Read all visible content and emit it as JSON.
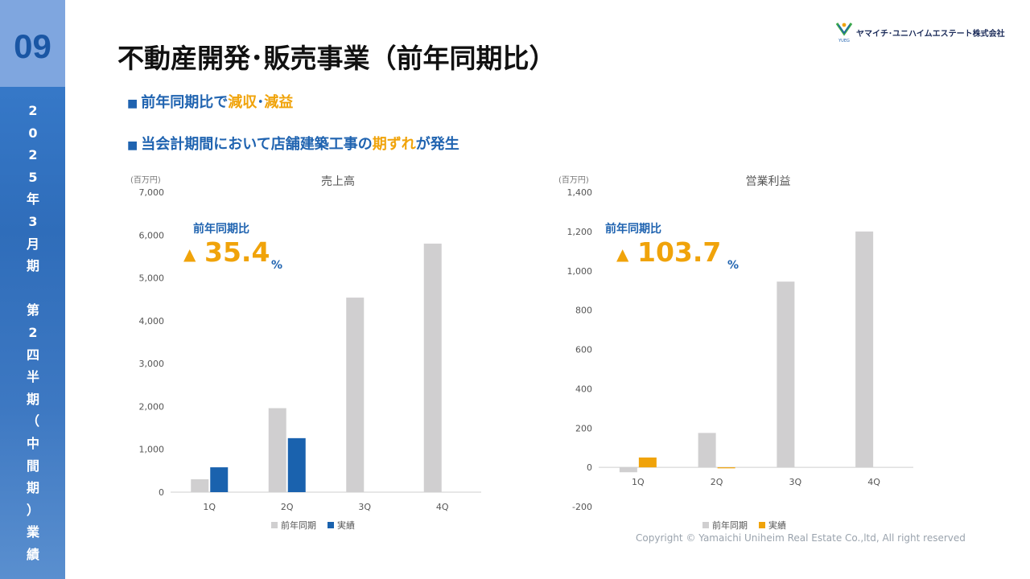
{
  "page_number": "09",
  "side_label": [
    "2",
    "0",
    "2",
    "5",
    "年",
    "3",
    "月",
    "期",
    "",
    "第",
    "2",
    "四",
    "半",
    "期",
    "（",
    "中",
    "間",
    "期",
    "）",
    "業",
    "績"
  ],
  "title": "不動産開発･販売事業（前年同期比）",
  "company": "ヤマイチ･ユニハイムエステート株式会社",
  "logo_mark": "YUEG",
  "bullets": [
    {
      "marker": "■",
      "parts": [
        {
          "text": "前年同期比で",
          "hl": false
        },
        {
          "text": "減収",
          "hl": true
        },
        {
          "text": "･",
          "hl": false
        },
        {
          "text": "減益",
          "hl": true
        }
      ]
    },
    {
      "marker": "■",
      "parts": [
        {
          "text": "当会計期間において店舗建築工事の",
          "hl": false
        },
        {
          "text": "期ずれ",
          "hl": true
        },
        {
          "text": "が発生",
          "hl": false
        }
      ]
    }
  ],
  "colors": {
    "prior": "#d0cfd0",
    "sales_actual": "#1a62ae",
    "profit_actual": "#f0a30a",
    "accent": "#f0a30a",
    "blue_text": "#1f63b0"
  },
  "copyright": "Copyright © Yamaichi Uniheim Real Estate Co.,ltd, All right reserved",
  "chart_data": [
    {
      "type": "bar",
      "title": "売上高",
      "unit_label": "(百万円)",
      "categories": [
        "1Q",
        "2Q",
        "3Q",
        "4Q"
      ],
      "series": [
        {
          "name": "前年同期",
          "values": [
            300,
            1960,
            4540,
            5800
          ]
        },
        {
          "name": "実績",
          "values": [
            580,
            1260,
            null,
            null
          ]
        }
      ],
      "ylim": [
        0,
        7000
      ],
      "yticks": [
        "0",
        "1,000",
        "2,000",
        "3,000",
        "4,000",
        "5,000",
        "6,000",
        "7,000"
      ],
      "callout": {
        "label": "前年同期比",
        "arrow": "▲",
        "value": "35.4",
        "unit": "%"
      },
      "legend_position": "bottom"
    },
    {
      "type": "bar",
      "title": "営業利益",
      "unit_label": "(百万円)",
      "categories": [
        "1Q",
        "2Q",
        "3Q",
        "4Q"
      ],
      "series": [
        {
          "name": "前年同期",
          "values": [
            -25,
            175,
            945,
            1200
          ]
        },
        {
          "name": "実績",
          "values": [
            50,
            -5,
            null,
            null
          ]
        }
      ],
      "ylim": [
        -200,
        1400
      ],
      "yticks": [
        "-200",
        "0",
        "200",
        "400",
        "600",
        "800",
        "1,000",
        "1,200",
        "1,400"
      ],
      "callout": {
        "label": "前年同期比",
        "arrow": "▲",
        "value": "103.7",
        "unit": "%"
      },
      "legend_position": "bottom"
    }
  ]
}
